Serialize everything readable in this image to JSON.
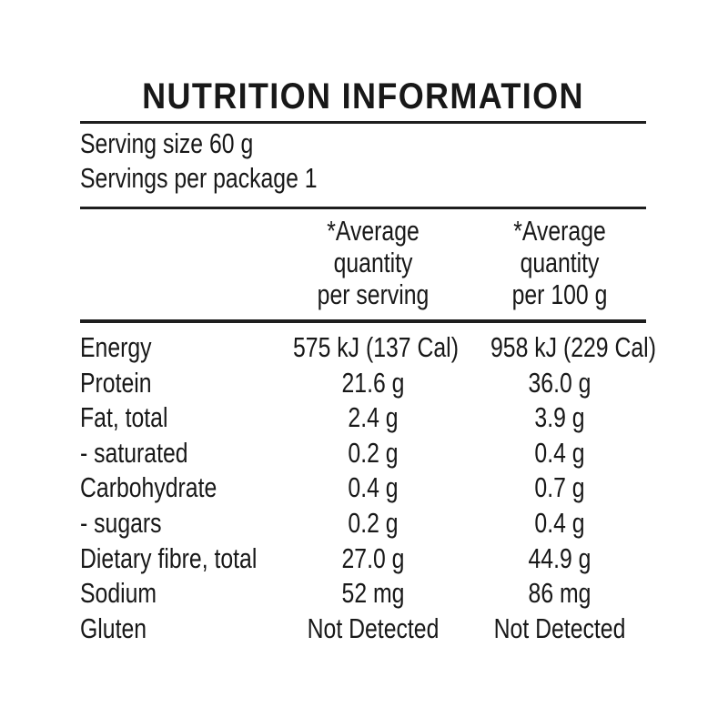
{
  "label": {
    "title": "NUTRITION INFORMATION",
    "serving_size": "Serving size 60 g",
    "servings_per_package": "Servings per package 1",
    "columns": {
      "per_serving": {
        "line1": "*Average",
        "line2": "quantity",
        "line3": "per serving"
      },
      "per_100g": {
        "line1": "*Average",
        "line2": "quantity",
        "line3": "per 100 g"
      }
    },
    "rows": [
      {
        "nutrient": "Energy",
        "per_serving": "575 kJ (137 Cal)",
        "per_100g": "958 kJ (229 Cal)"
      },
      {
        "nutrient": "Protein",
        "per_serving": "21.6 g",
        "per_100g": "36.0 g"
      },
      {
        "nutrient": "Fat, total",
        "per_serving": "2.4 g",
        "per_100g": "3.9 g"
      },
      {
        "nutrient": "- saturated",
        "per_serving": "0.2 g",
        "per_100g": "0.4 g"
      },
      {
        "nutrient": "Carbohydrate",
        "per_serving": "0.4 g",
        "per_100g": "0.7 g"
      },
      {
        "nutrient": "- sugars",
        "per_serving": "0.2 g",
        "per_100g": "0.4 g"
      },
      {
        "nutrient": "Dietary fibre, total",
        "per_serving": "27.0 g",
        "per_100g": "44.9 g"
      },
      {
        "nutrient": "Sodium",
        "per_serving": "52 mg",
        "per_100g": "86 mg"
      },
      {
        "nutrient": "Gluten",
        "per_serving": "Not Detected",
        "per_100g": "Not Detected"
      }
    ],
    "colors": {
      "text": "#181818",
      "rule": "#1e1e1e",
      "background": "#ffffff"
    }
  }
}
